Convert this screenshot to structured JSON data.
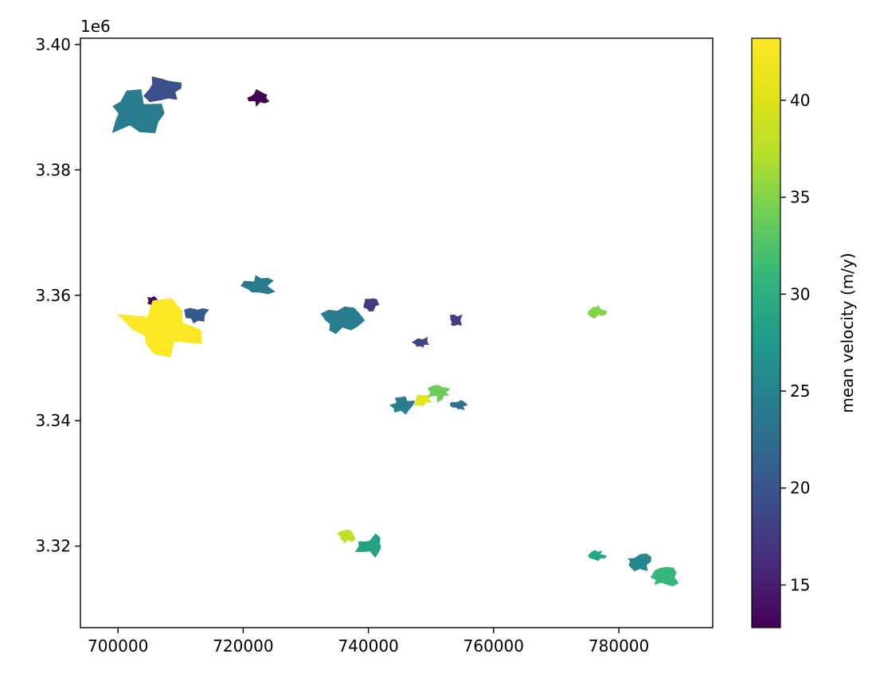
{
  "chart_data": {
    "type": "scatter",
    "kind": "glacier-outline-map",
    "title": "",
    "xlabel": "",
    "ylabel": "",
    "y_offset_label": "1e6",
    "xlim": [
      694000,
      795000
    ],
    "ylim": [
      3307000,
      3401000
    ],
    "x_ticks": [
      700000,
      720000,
      740000,
      760000,
      780000
    ],
    "x_tick_labels": [
      "700000",
      "720000",
      "740000",
      "760000",
      "780000"
    ],
    "y_ticks": [
      3320000,
      3340000,
      3360000,
      3380000,
      3400000
    ],
    "y_tick_labels": [
      "3.32",
      "3.34",
      "3.36",
      "3.38",
      "3.40"
    ],
    "grid": false,
    "colorbar": {
      "label": "mean velocity (m/y)",
      "colormap": "viridis",
      "range": [
        12.8,
        43.2
      ],
      "ticks": [
        15,
        20,
        25,
        30,
        35,
        40
      ],
      "tick_labels": [
        "15",
        "20",
        "25",
        "30",
        "35",
        "40"
      ]
    },
    "glaciers": [
      {
        "x": 702500,
        "y": 3389000,
        "velocity": 24.5,
        "size": 9000
      },
      {
        "x": 707500,
        "y": 3393000,
        "velocity": 19.5,
        "size": 6000
      },
      {
        "x": 722500,
        "y": 3391500,
        "velocity": 13.0,
        "size": 3500
      },
      {
        "x": 705500,
        "y": 3359000,
        "velocity": 13.5,
        "size": 2500
      },
      {
        "x": 707000,
        "y": 3354500,
        "velocity": 43.0,
        "size": 12000
      },
      {
        "x": 712500,
        "y": 3357000,
        "velocity": 20.5,
        "size": 3500
      },
      {
        "x": 722500,
        "y": 3361500,
        "velocity": 24.0,
        "size": 4500
      },
      {
        "x": 735500,
        "y": 3356000,
        "velocity": 24.5,
        "size": 6500
      },
      {
        "x": 740500,
        "y": 3358500,
        "velocity": 17.5,
        "size": 2500
      },
      {
        "x": 748500,
        "y": 3352500,
        "velocity": 18.5,
        "size": 2500
      },
      {
        "x": 754000,
        "y": 3356000,
        "velocity": 18.0,
        "size": 2500
      },
      {
        "x": 776500,
        "y": 3357500,
        "velocity": 35.0,
        "size": 2800
      },
      {
        "x": 745500,
        "y": 3342500,
        "velocity": 24.5,
        "size": 3500
      },
      {
        "x": 748500,
        "y": 3343500,
        "velocity": 40.5,
        "size": 3000
      },
      {
        "x": 751500,
        "y": 3344500,
        "velocity": 34.0,
        "size": 3500
      },
      {
        "x": 754500,
        "y": 3342500,
        "velocity": 23.0,
        "size": 2500
      },
      {
        "x": 736500,
        "y": 3321500,
        "velocity": 38.0,
        "size": 3000
      },
      {
        "x": 740500,
        "y": 3320000,
        "velocity": 28.5,
        "size": 4500
      },
      {
        "x": 776500,
        "y": 3318500,
        "velocity": 29.0,
        "size": 2500
      },
      {
        "x": 783000,
        "y": 3317500,
        "velocity": 25.5,
        "size": 4000
      },
      {
        "x": 787000,
        "y": 3315000,
        "velocity": 31.0,
        "size": 4500
      }
    ]
  }
}
